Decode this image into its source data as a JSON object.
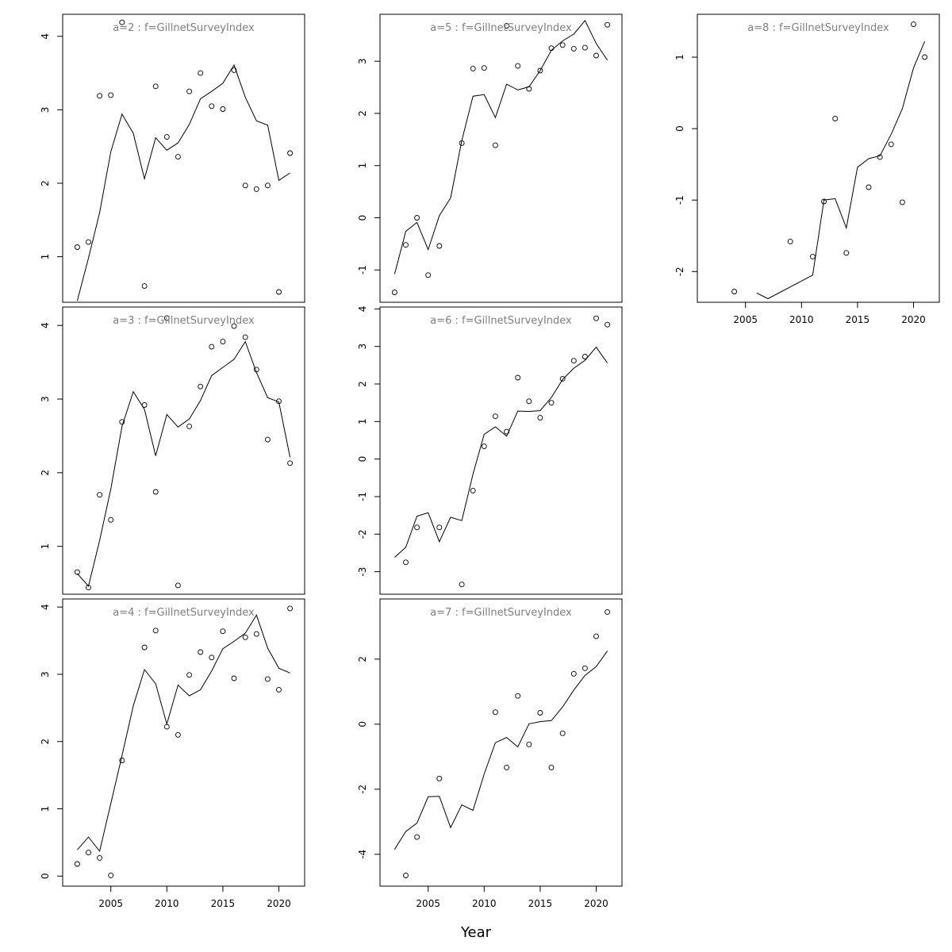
{
  "chart_data": {
    "type": "scatter",
    "xlabel": "Year",
    "x_ticks": [
      2005,
      2010,
      2015,
      2020
    ],
    "panels": [
      {
        "title": "a=2  :  f=GillnetSurveyIndex",
        "xlim": [
          2000.7,
          2022.3
        ],
        "ylim": [
          0.38,
          4.3
        ],
        "y_ticks": [
          1,
          2,
          3,
          4
        ],
        "show_x_axis": false,
        "fitted": {
          "x": [
            2002,
            2003,
            2004,
            2005,
            2006,
            2007,
            2008,
            2009,
            2010,
            2011,
            2012,
            2013,
            2014,
            2015,
            2016,
            2017,
            2018,
            2019,
            2020,
            2021
          ],
          "y": [
            0.4,
            0.98,
            1.6,
            2.43,
            2.94,
            2.68,
            2.06,
            2.62,
            2.45,
            2.55,
            2.8,
            3.15,
            3.25,
            3.36,
            3.61,
            3.17,
            2.85,
            2.79,
            2.04,
            2.14
          ]
        },
        "observed": {
          "x": [
            2002,
            2003,
            2004,
            2005,
            2006,
            2008,
            2009,
            2010,
            2011,
            2012,
            2013,
            2014,
            2015,
            2016,
            2017,
            2018,
            2019,
            2020,
            2021
          ],
          "y": [
            1.13,
            1.2,
            3.19,
            3.2,
            4.19,
            0.6,
            3.32,
            2.63,
            2.36,
            3.25,
            3.5,
            3.05,
            3.01,
            3.54,
            1.97,
            1.92,
            1.97,
            0.52,
            2.41
          ]
        }
      },
      {
        "title": "a=3  :  f=GillnetSurveyIndex",
        "xlim": [
          2000.7,
          2022.3
        ],
        "ylim": [
          0.35,
          4.25
        ],
        "y_ticks": [
          1,
          2,
          3,
          4
        ],
        "show_x_axis": false,
        "fitted": {
          "x": [
            2002,
            2003,
            2004,
            2005,
            2006,
            2007,
            2008,
            2009,
            2010,
            2011,
            2012,
            2013,
            2014,
            2015,
            2016,
            2017,
            2018,
            2019,
            2020,
            2021
          ],
          "y": [
            0.63,
            0.46,
            1.08,
            1.78,
            2.63,
            3.1,
            2.86,
            2.23,
            2.79,
            2.62,
            2.73,
            2.98,
            3.32,
            3.43,
            3.54,
            3.78,
            3.36,
            3.02,
            2.96,
            2.21
          ]
        },
        "observed": {
          "x": [
            2002,
            2003,
            2004,
            2005,
            2006,
            2008,
            2009,
            2010,
            2011,
            2012,
            2013,
            2014,
            2015,
            2016,
            2017,
            2018,
            2019,
            2020,
            2021
          ],
          "y": [
            0.65,
            0.44,
            1.7,
            1.36,
            2.69,
            2.92,
            1.74,
            4.1,
            0.47,
            2.63,
            3.17,
            3.71,
            3.78,
            3.99,
            3.84,
            3.4,
            2.45,
            2.97,
            2.13
          ]
        }
      },
      {
        "title": "a=4  :  f=GillnetSurveyIndex",
        "xlim": [
          2000.7,
          2022.3
        ],
        "ylim": [
          -0.15,
          4.12
        ],
        "y_ticks": [
          0,
          1,
          2,
          3,
          4
        ],
        "show_x_axis": true,
        "fitted": {
          "x": [
            2002,
            2003,
            2004,
            2005,
            2006,
            2007,
            2008,
            2009,
            2010,
            2011,
            2012,
            2013,
            2014,
            2015,
            2016,
            2017,
            2018,
            2019,
            2020,
            2021
          ],
          "y": [
            0.39,
            0.58,
            0.37,
            1.08,
            1.79,
            2.53,
            3.07,
            2.86,
            2.26,
            2.84,
            2.68,
            2.77,
            3.05,
            3.38,
            3.49,
            3.61,
            3.88,
            3.39,
            3.09,
            3.02
          ]
        },
        "observed": {
          "x": [
            2002,
            2003,
            2004,
            2005,
            2006,
            2008,
            2009,
            2010,
            2011,
            2012,
            2013,
            2014,
            2015,
            2016,
            2017,
            2018,
            2019,
            2020,
            2021
          ],
          "y": [
            0.18,
            0.35,
            0.27,
            0.01,
            1.72,
            3.4,
            3.65,
            2.22,
            2.1,
            2.99,
            3.33,
            3.25,
            3.64,
            2.94,
            3.55,
            3.6,
            2.93,
            2.77,
            3.98
          ]
        }
      },
      {
        "title": "a=5  :  f=GillnetSurveyIndex",
        "xlim": [
          2000.7,
          2022.3
        ],
        "ylim": [
          -1.62,
          3.9
        ],
        "y_ticks": [
          -1,
          0,
          1,
          2,
          3
        ],
        "show_x_axis": false,
        "fitted": {
          "x": [
            2002,
            2003,
            2004,
            2005,
            2006,
            2007,
            2008,
            2009,
            2010,
            2011,
            2012,
            2013,
            2014,
            2015,
            2016,
            2017,
            2018,
            2019,
            2020,
            2021
          ],
          "y": [
            -1.08,
            -0.26,
            -0.09,
            -0.61,
            0.04,
            0.38,
            1.48,
            2.33,
            2.36,
            1.92,
            2.56,
            2.45,
            2.51,
            2.82,
            3.21,
            3.39,
            3.52,
            3.78,
            3.34,
            3.02
          ]
        },
        "observed": {
          "x": [
            2002,
            2003,
            2004,
            2005,
            2006,
            2008,
            2009,
            2010,
            2011,
            2012,
            2013,
            2014,
            2015,
            2016,
            2017,
            2018,
            2019,
            2020,
            2021
          ],
          "y": [
            -1.43,
            -0.52,
            0.0,
            -1.1,
            -0.54,
            1.43,
            2.86,
            2.87,
            1.39,
            3.68,
            2.91,
            2.47,
            2.82,
            3.25,
            3.31,
            3.24,
            3.26,
            3.11,
            3.7
          ]
        }
      },
      {
        "title": "a=6  :  f=GillnetSurveyIndex",
        "xlim": [
          2000.7,
          2022.3
        ],
        "ylim": [
          -3.6,
          4.05
        ],
        "y_ticks": [
          -3,
          -2,
          -1,
          0,
          1,
          2,
          3,
          4
        ],
        "show_x_axis": false,
        "fitted": {
          "x": [
            2002,
            2003,
            2004,
            2005,
            2006,
            2007,
            2008,
            2009,
            2010,
            2011,
            2012,
            2013,
            2014,
            2015,
            2016,
            2017,
            2018,
            2019,
            2020,
            2021
          ],
          "y": [
            -2.62,
            -2.35,
            -1.52,
            -1.43,
            -2.2,
            -1.55,
            -1.64,
            -0.4,
            0.66,
            0.86,
            0.61,
            1.28,
            1.27,
            1.29,
            1.64,
            2.12,
            2.42,
            2.63,
            2.98,
            2.56
          ]
        },
        "observed": {
          "x": [
            2003,
            2004,
            2006,
            2008,
            2009,
            2010,
            2011,
            2012,
            2013,
            2014,
            2015,
            2016,
            2017,
            2018,
            2019,
            2020,
            2021
          ],
          "y": [
            -2.75,
            -1.82,
            -1.82,
            -3.34,
            -0.84,
            0.34,
            1.14,
            0.73,
            2.17,
            1.54,
            1.1,
            1.5,
            2.14,
            2.62,
            2.73,
            3.75,
            3.58
          ]
        }
      },
      {
        "title": "a=7  :  f=GillnetSurveyIndex",
        "xlim": [
          2000.7,
          2022.3
        ],
        "ylim": [
          -4.98,
          3.85
        ],
        "y_ticks": [
          -4,
          -2,
          0,
          2
        ],
        "show_x_axis": true,
        "fitted": {
          "x": [
            2002,
            2003,
            2004,
            2005,
            2006,
            2007,
            2008,
            2009,
            2010,
            2011,
            2012,
            2013,
            2014,
            2015,
            2016,
            2017,
            2018,
            2019,
            2020,
            2021
          ],
          "y": [
            -3.85,
            -3.3,
            -3.04,
            -2.23,
            -2.22,
            -3.18,
            -2.48,
            -2.65,
            -1.53,
            -0.57,
            -0.41,
            -0.7,
            0.01,
            0.08,
            0.11,
            0.53,
            1.05,
            1.5,
            1.77,
            2.25
          ]
        },
        "observed": {
          "x": [
            2003,
            2004,
            2006,
            2011,
            2012,
            2013,
            2014,
            2015,
            2016,
            2017,
            2018,
            2019,
            2020,
            2021
          ],
          "y": [
            -4.65,
            -3.47,
            -1.67,
            0.37,
            -1.33,
            0.87,
            -0.62,
            0.35,
            -1.33,
            -0.28,
            1.55,
            1.72,
            2.7,
            3.45
          ]
        }
      },
      {
        "title": "a=8  :  f=GillnetSurveyIndex",
        "xlim": [
          2000.7,
          2022.3
        ],
        "ylim": [
          -2.43,
          1.6
        ],
        "y_ticks": [
          -2,
          -1,
          0,
          1
        ],
        "show_x_axis": true,
        "fitted": {
          "x": [
            2006,
            2007,
            2011,
            2012,
            2013,
            2014,
            2015,
            2016,
            2017,
            2018,
            2019,
            2020,
            2021
          ],
          "y": [
            -2.3,
            -2.38,
            -2.05,
            -1.0,
            -0.98,
            -1.39,
            -0.54,
            -0.42,
            -0.38,
            -0.08,
            0.28,
            0.85,
            1.22
          ]
        },
        "observed": {
          "x": [
            2004,
            2009,
            2011,
            2012,
            2013,
            2014,
            2016,
            2017,
            2018,
            2019,
            2020,
            2021
          ],
          "y": [
            -2.28,
            -1.58,
            -1.79,
            -1.02,
            0.14,
            -1.74,
            -0.82,
            -0.4,
            -0.22,
            -1.03,
            1.46,
            1.0
          ]
        }
      }
    ]
  }
}
